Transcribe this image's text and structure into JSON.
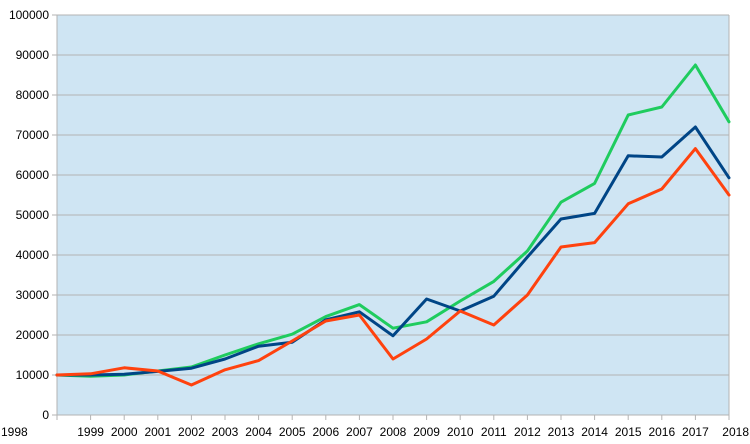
{
  "chart_data": {
    "type": "line",
    "title": "",
    "xlabel": "",
    "ylabel": "",
    "x": [
      "1998",
      "1999",
      "2000",
      "2001",
      "2002",
      "2003",
      "2004",
      "2005",
      "2006",
      "2007",
      "2008",
      "2009",
      "2010",
      "2011",
      "2012",
      "2013",
      "2014",
      "2015",
      "2016",
      "2017",
      "2018"
    ],
    "ylim": [
      0,
      100000
    ],
    "yticks": [
      0,
      10000,
      20000,
      30000,
      40000,
      50000,
      60000,
      70000,
      80000,
      90000,
      100000
    ],
    "grid": true,
    "legend": "none",
    "colors": {
      "plot_background": "#cfe5f3",
      "grid": "#b3b3b3"
    },
    "series": [
      {
        "color": "#1fcc5e",
        "values": [
          10000,
          9700,
          10000,
          11000,
          12000,
          15000,
          17800,
          20200,
          24600,
          27600,
          21700,
          23300,
          28500,
          33400,
          41000,
          53200,
          57900,
          75000,
          77000,
          87500,
          73300
        ]
      },
      {
        "color": "#004586",
        "values": [
          10000,
          10000,
          10200,
          10900,
          11700,
          14000,
          17200,
          18200,
          23800,
          25800,
          19800,
          29000,
          26000,
          29700,
          39500,
          49000,
          50400,
          64800,
          64500,
          72000,
          59300
        ]
      },
      {
        "color": "#ff420e",
        "values": [
          10000,
          10300,
          11800,
          11000,
          7500,
          11300,
          13600,
          18500,
          23500,
          25000,
          14000,
          19000,
          26000,
          22500,
          30000,
          42000,
          43100,
          52800,
          56500,
          66600,
          55000
        ]
      }
    ]
  }
}
